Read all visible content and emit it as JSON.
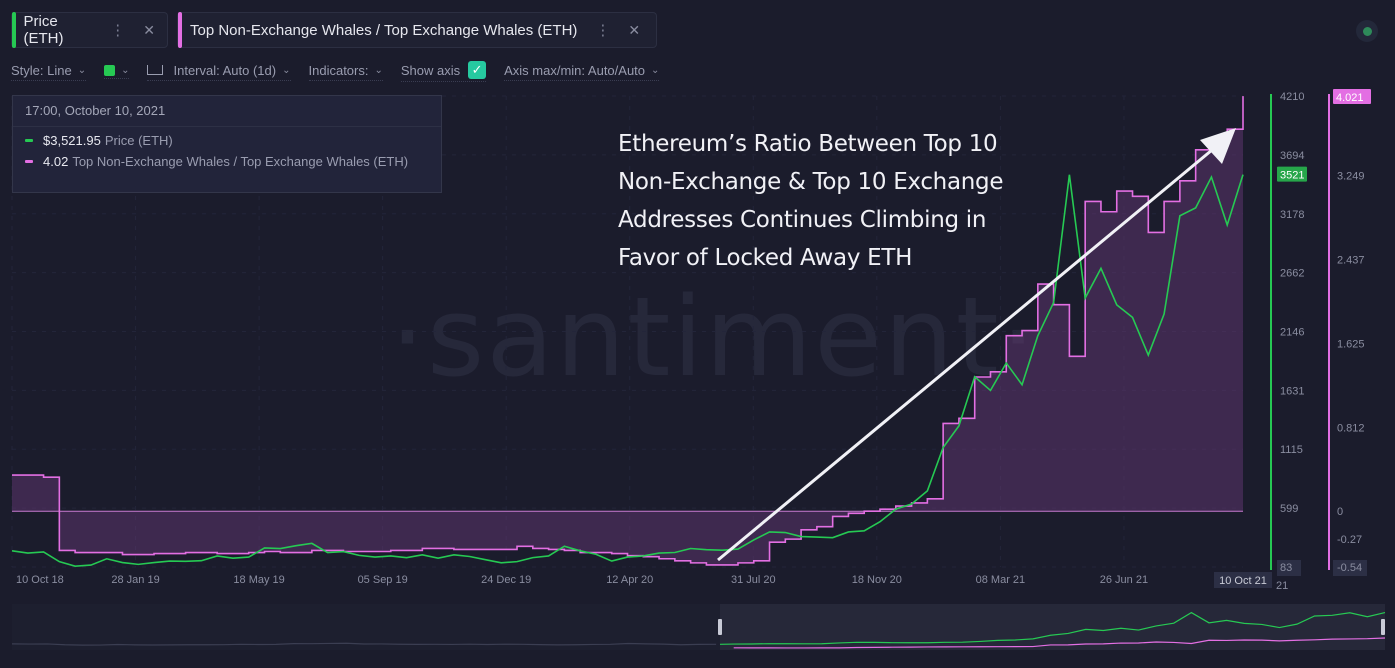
{
  "tabs": [
    {
      "label": "Price (ETH)",
      "color": "#26c953"
    },
    {
      "label": "Top Non-Exchange Whales / Top Exchange Whales (ETH)",
      "color": "#e36fe3"
    }
  ],
  "toolbar": {
    "style": "Style: Line",
    "interval": "Interval: Auto (1d)",
    "indicators": "Indicators:",
    "show_axis": "Show axis",
    "axis_maxmin": "Axis max/min: Auto/Auto"
  },
  "tooltip": {
    "date": "17:00, October 10, 2021",
    "rows": [
      {
        "value": "$3,521.95",
        "name": "Price (ETH)"
      },
      {
        "value": "4.02",
        "name": "Top Non-Exchange Whales / Top Exchange Whales (ETH)"
      }
    ]
  },
  "annotation": [
    "Ethereum’s Ratio Between Top 10",
    "Non-Exchange & Top 10 Exchange",
    "Addresses Continues Climbing in",
    "Favor of Locked Away ETH"
  ],
  "watermark": "·santiment·",
  "chart_data": {
    "type": "line",
    "title": "Ethereum’s Ratio Between Top 10 Non-Exchange & Top 10 Exchange Addresses Continues Climbing in Favor of Locked Away ETH",
    "x_range": [
      "2018-10-10",
      "2021-10-10"
    ],
    "x_ticks": [
      {
        "label": "10 Oct 18",
        "day": 0
      },
      {
        "label": "28 Jan 19",
        "day": 110
      },
      {
        "label": "18 May 19",
        "day": 220
      },
      {
        "label": "05 Sep 19",
        "day": 330
      },
      {
        "label": "24 Dec 19",
        "day": 440
      },
      {
        "label": "12 Apr 20",
        "day": 550
      },
      {
        "label": "31 Jul 20",
        "day": 660
      },
      {
        "label": "18 Nov 20",
        "day": 770
      },
      {
        "label": "08 Mar 21",
        "day": 880
      },
      {
        "label": "26 Jun 21",
        "day": 990
      }
    ],
    "x_current_label": "10 Oct 21",
    "x_trailing_label": "21",
    "series": [
      {
        "name": "Price (ETH)",
        "color": "#26c953",
        "axis": "left",
        "ylim": [
          83,
          4210
        ],
        "y_ticks": [
          "4210",
          "3694",
          "3178",
          "2662",
          "2146",
          "1631",
          "1115",
          "599",
          "83"
        ],
        "current_label": "3521",
        "values": [
          225,
          205,
          215,
          130,
          90,
          100,
          155,
          122,
          106,
          122,
          135,
          133,
          138,
          180,
          160,
          170,
          250,
          245,
          270,
          290,
          210,
          218,
          185,
          170,
          180,
          165,
          190,
          160,
          190,
          175,
          147,
          120,
          130,
          165,
          180,
          265,
          225,
          195,
          135,
          170,
          180,
          205,
          210,
          245,
          235,
          230,
          240,
          320,
          390,
          385,
          350,
          345,
          340,
          390,
          400,
          480,
          590,
          635,
          750,
          1130,
          1320,
          1750,
          1630,
          1870,
          1680,
          2110,
          2400,
          3520,
          2440,
          2700,
          2380,
          2270,
          1940,
          2300,
          3160,
          3230,
          3500,
          3080,
          3521
        ]
      },
      {
        "name": "Top Non-Exchange Whales / Top Exchange Whales (ETH)",
        "color": "#e36fe3",
        "axis": "right",
        "ylim": [
          -0.54,
          4.021
        ],
        "y_ticks": [
          "3.249",
          "2.437",
          "1.625",
          "0.812",
          "0",
          "-0.27",
          "-0.54"
        ],
        "current_label": "4.021",
        "values": [
          0.35,
          0.35,
          0.33,
          -0.38,
          -0.4,
          -0.4,
          -0.4,
          -0.42,
          -0.42,
          -0.41,
          -0.41,
          -0.4,
          -0.4,
          -0.41,
          -0.41,
          -0.4,
          -0.39,
          -0.4,
          -0.4,
          -0.38,
          -0.38,
          -0.39,
          -0.39,
          -0.39,
          -0.38,
          -0.38,
          -0.36,
          -0.36,
          -0.37,
          -0.37,
          -0.37,
          -0.37,
          -0.34,
          -0.36,
          -0.37,
          -0.38,
          -0.4,
          -0.4,
          -0.41,
          -0.43,
          -0.44,
          -0.46,
          -0.48,
          -0.5,
          -0.52,
          -0.52,
          -0.5,
          -0.48,
          -0.3,
          -0.27,
          -0.18,
          -0.15,
          -0.05,
          -0.02,
          0.0,
          0.02,
          0.05,
          0.08,
          0.12,
          0.85,
          0.9,
          1.3,
          1.35,
          1.7,
          1.75,
          2.2,
          2.0,
          1.5,
          3.0,
          2.9,
          3.1,
          3.05,
          2.7,
          3.0,
          3.2,
          3.5,
          3.6,
          3.7,
          4.02
        ]
      }
    ]
  }
}
